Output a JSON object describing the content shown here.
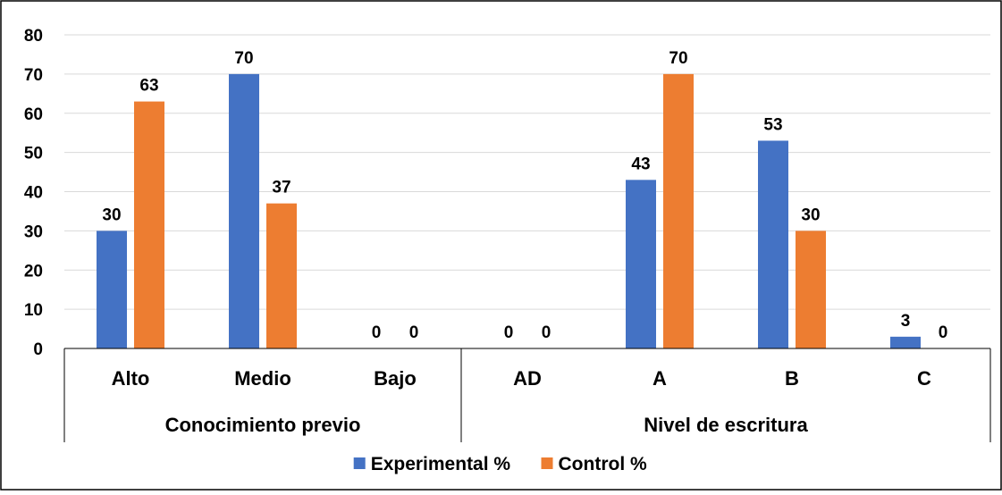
{
  "chart_data": {
    "type": "bar",
    "ylim": [
      0,
      80
    ],
    "yticks": [
      0,
      10,
      20,
      30,
      40,
      50,
      60,
      70,
      80
    ],
    "grid": true,
    "legend_position": "bottom",
    "groups": [
      {
        "label": "Conocimiento previo",
        "categories": [
          "Alto",
          "Medio",
          "Bajo"
        ]
      },
      {
        "label": "Nivel de escritura",
        "categories": [
          "AD",
          "A",
          "B",
          "C"
        ]
      }
    ],
    "categories": [
      "Alto",
      "Medio",
      "Bajo",
      "AD",
      "A",
      "B",
      "C"
    ],
    "series": [
      {
        "name": "Experimental %",
        "color": "#4472c4",
        "values": [
          30,
          70,
          0,
          0,
          43,
          53,
          3
        ]
      },
      {
        "name": "Control %",
        "color": "#ed7d31",
        "values": [
          63,
          37,
          0,
          0,
          70,
          30,
          0
        ]
      }
    ]
  }
}
